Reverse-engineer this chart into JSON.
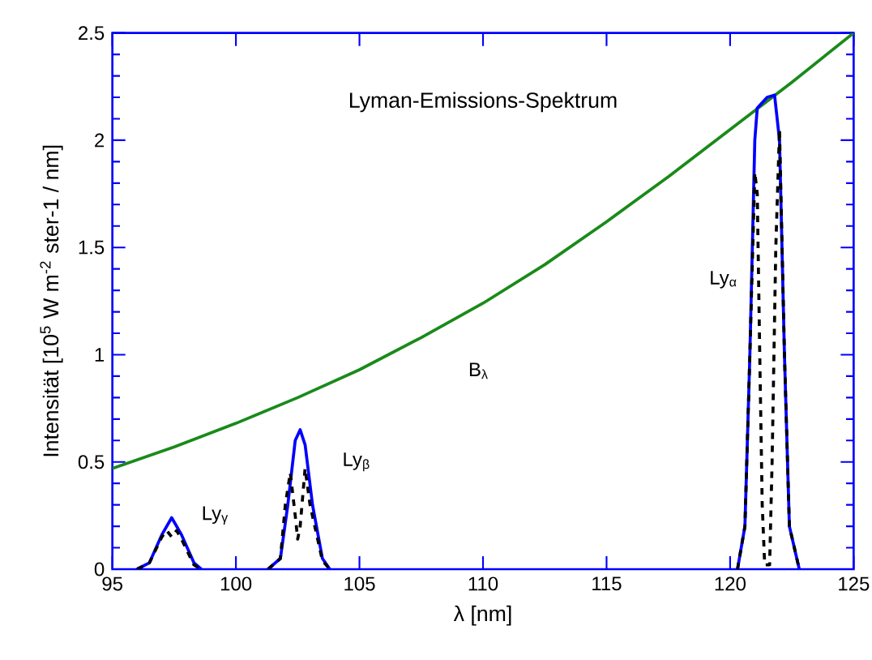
{
  "chart_data": {
    "type": "line",
    "title": "Lyman-Emissions-Spektrum",
    "xlabel": "λ [nm]",
    "ylabel": "Intensität  [10$^{5}$ W m$^{-2}$ ster-1  / nm]",
    "xlim": [
      95,
      125
    ],
    "ylim": [
      0,
      2.5
    ],
    "xticks": [
      95,
      100,
      105,
      110,
      115,
      120,
      125
    ],
    "yticks": [
      0,
      0.5,
      1,
      1.5,
      2,
      2.5
    ],
    "series": [
      {
        "color": "#1a8a1a",
        "line_style": "solid",
        "x": [
          95,
          97.5,
          100,
          102.5,
          105,
          107.5,
          110,
          112.5,
          115,
          117.5,
          120,
          122.5,
          125
        ],
        "values": [
          0.47,
          0.57,
          0.68,
          0.8,
          0.93,
          1.08,
          1.24,
          1.42,
          1.62,
          1.83,
          2.05,
          2.27,
          2.5
        ]
      },
      {
        "color": "#0000ff",
        "line_style": "solid",
        "x": [
          96.0,
          96.5,
          97.0,
          97.4,
          97.8,
          98.3,
          98.6
        ],
        "values": [
          0,
          0.03,
          0.16,
          0.24,
          0.16,
          0.03,
          0
        ]
      },
      {
        "color": "#0000ff",
        "line_style": "solid",
        "x": [
          101.3,
          101.8,
          102.1,
          102.4,
          102.6,
          102.8,
          103.1,
          103.5,
          103.8
        ],
        "values": [
          0,
          0.05,
          0.3,
          0.6,
          0.65,
          0.58,
          0.3,
          0.05,
          0
        ]
      },
      {
        "color": "#0000ff",
        "line_style": "solid",
        "x": [
          120.3,
          120.6,
          120.8,
          121.0,
          121.1,
          121.5,
          121.8,
          122.0,
          122.2,
          122.4,
          122.8
        ],
        "values": [
          0,
          0.2,
          1.0,
          2.0,
          2.15,
          2.2,
          2.21,
          2.0,
          1.0,
          0.2,
          0
        ]
      },
      {
        "color": "#000000",
        "line_style": "dashed",
        "x": [
          96.0,
          96.5,
          97.0,
          97.2,
          97.4,
          97.6,
          97.8,
          98.3,
          98.6
        ],
        "values": [
          0,
          0.03,
          0.15,
          0.18,
          0.15,
          0.18,
          0.14,
          0.02,
          0
        ]
      },
      {
        "color": "#000000",
        "line_style": "dashed",
        "x": [
          101.3,
          101.8,
          102.0,
          102.2,
          102.4,
          102.5,
          102.6,
          102.8,
          103.0,
          103.5,
          103.8
        ],
        "values": [
          0,
          0.05,
          0.3,
          0.45,
          0.25,
          0.14,
          0.2,
          0.47,
          0.3,
          0.04,
          0
        ]
      },
      {
        "color": "#000000",
        "line_style": "dashed",
        "x": [
          120.3,
          120.6,
          120.8,
          121.0,
          121.1,
          121.2,
          121.3,
          121.4,
          121.6,
          121.7,
          121.85,
          122.0,
          122.2,
          122.4,
          122.8
        ],
        "values": [
          0,
          0.2,
          1.0,
          1.85,
          1.75,
          1.0,
          0.3,
          0.02,
          0.02,
          0.5,
          1.5,
          2.05,
          1.0,
          0.2,
          0
        ]
      }
    ],
    "annotations": [
      "Ly$_{γ}$",
      "Ly$_{β}$",
      "Ly$_{α}$",
      "B$_{λ}$"
    ]
  }
}
